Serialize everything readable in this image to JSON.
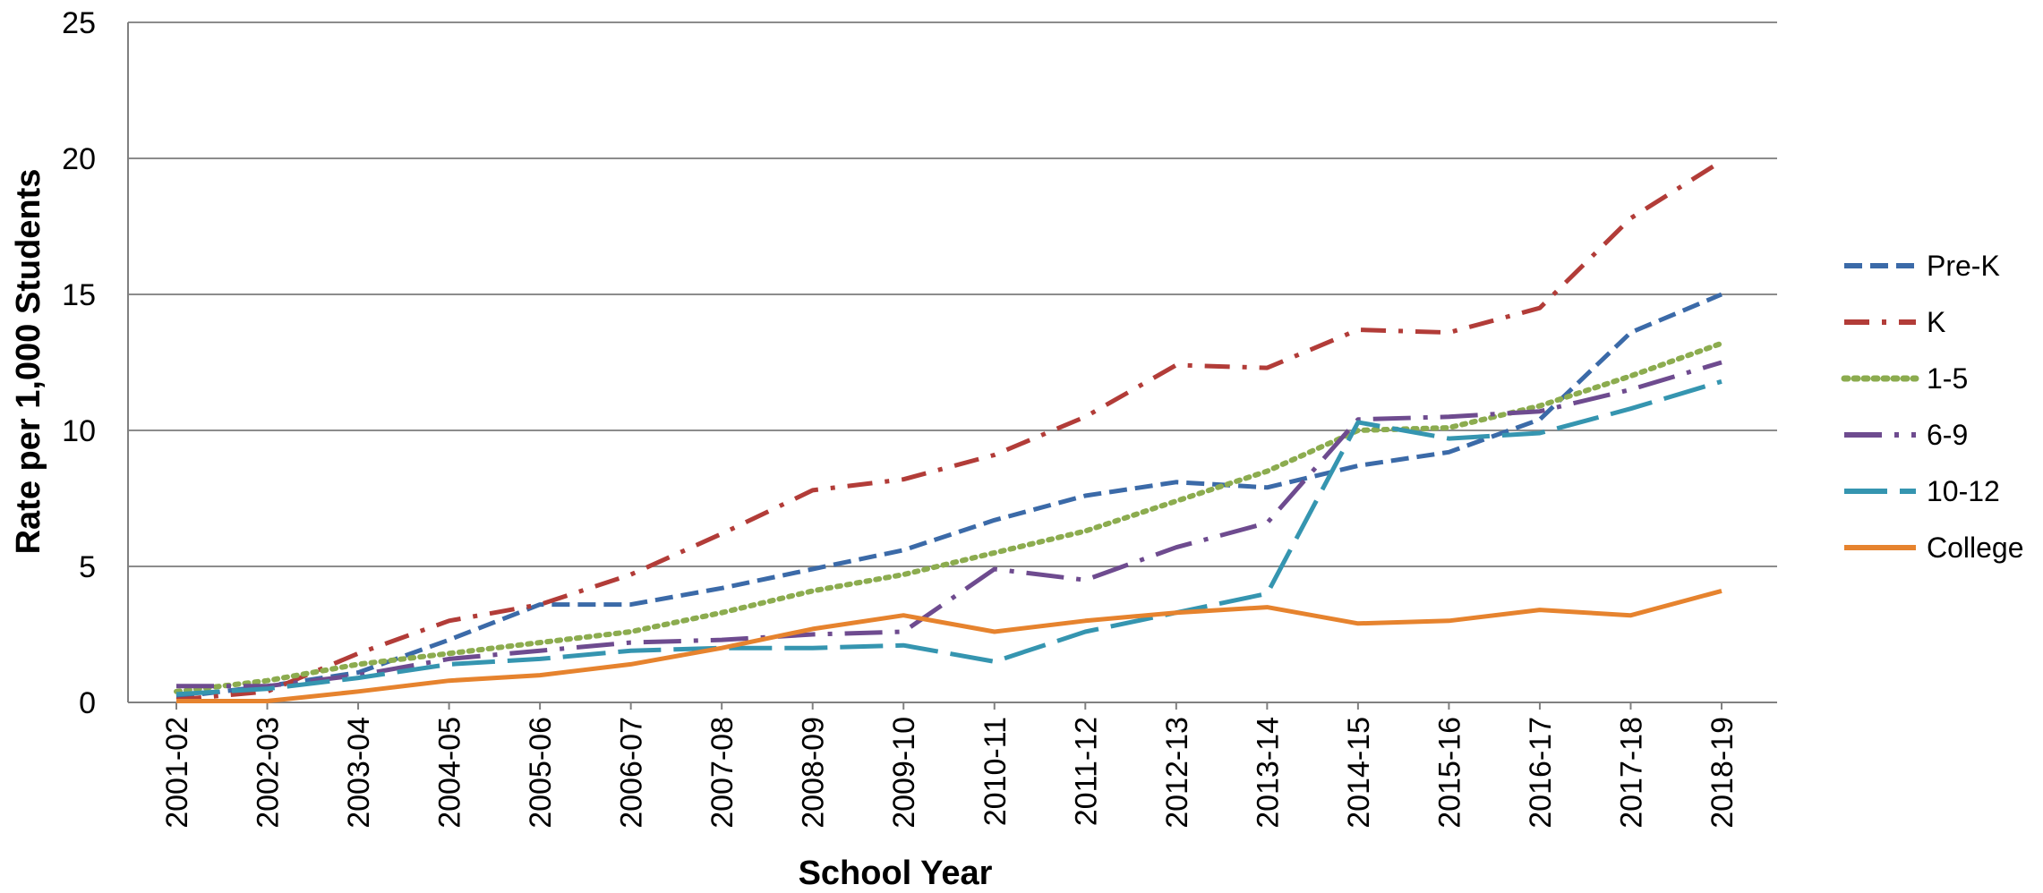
{
  "chart_data": {
    "type": "line",
    "title": "",
    "xlabel": "School Year",
    "ylabel": "Rate per 1,000 Students",
    "ylim": [
      0,
      25
    ],
    "yticks": [
      "0",
      "5",
      "10",
      "15",
      "20",
      "25"
    ],
    "grid": true,
    "legend_position": "right",
    "x": [
      "2001-02",
      "2002-03",
      "2003-04",
      "2004-05",
      "2005-06",
      "2006-07",
      "2007-08",
      "2008-09",
      "2009-10",
      "2010-11",
      "2011-12",
      "2012-13",
      "2013-14",
      "2014-15",
      "2015-16",
      "2016-17",
      "2017-18",
      "2018-19"
    ],
    "series": [
      {
        "name": "Pre-K",
        "color": "#3b6aa8",
        "style": "dashed",
        "values": [
          0.2,
          0.6,
          1.1,
          2.3,
          3.6,
          3.6,
          4.2,
          4.9,
          5.6,
          6.7,
          7.6,
          8.1,
          7.9,
          8.7,
          9.2,
          10.4,
          13.6,
          15.0
        ]
      },
      {
        "name": "K",
        "color": "#b23c38",
        "style": "dash-dot",
        "values": [
          0.1,
          0.4,
          1.8,
          3.0,
          3.6,
          4.7,
          6.2,
          7.8,
          8.2,
          9.1,
          10.5,
          12.4,
          12.3,
          13.7,
          13.6,
          14.5,
          17.8,
          19.9
        ]
      },
      {
        "name": "1-5",
        "color": "#8cac4f",
        "style": "dotted",
        "values": [
          0.4,
          0.8,
          1.4,
          1.8,
          2.2,
          2.6,
          3.3,
          4.1,
          4.7,
          5.5,
          6.3,
          7.4,
          8.5,
          10.0,
          10.1,
          10.9,
          12.0,
          13.2
        ]
      },
      {
        "name": "6-9",
        "color": "#6e4b8f",
        "style": "long-dash-dot",
        "values": [
          0.6,
          0.6,
          1.0,
          1.6,
          1.9,
          2.2,
          2.3,
          2.5,
          2.6,
          4.9,
          4.5,
          5.7,
          6.6,
          10.4,
          10.5,
          10.7,
          11.5,
          12.5
        ]
      },
      {
        "name": "10-12",
        "color": "#3595b0",
        "style": "long-dash",
        "values": [
          0.3,
          0.5,
          0.9,
          1.4,
          1.6,
          1.9,
          2.0,
          2.0,
          2.1,
          1.5,
          2.6,
          3.3,
          4.0,
          10.3,
          9.7,
          9.9,
          10.8,
          11.8
        ]
      },
      {
        "name": "College",
        "color": "#e6832e",
        "style": "solid",
        "values": [
          0.05,
          0.05,
          0.4,
          0.8,
          1.0,
          1.4,
          2.0,
          2.7,
          3.2,
          2.6,
          3.0,
          3.3,
          3.5,
          2.9,
          3.0,
          3.4,
          3.2,
          4.1
        ]
      }
    ]
  }
}
